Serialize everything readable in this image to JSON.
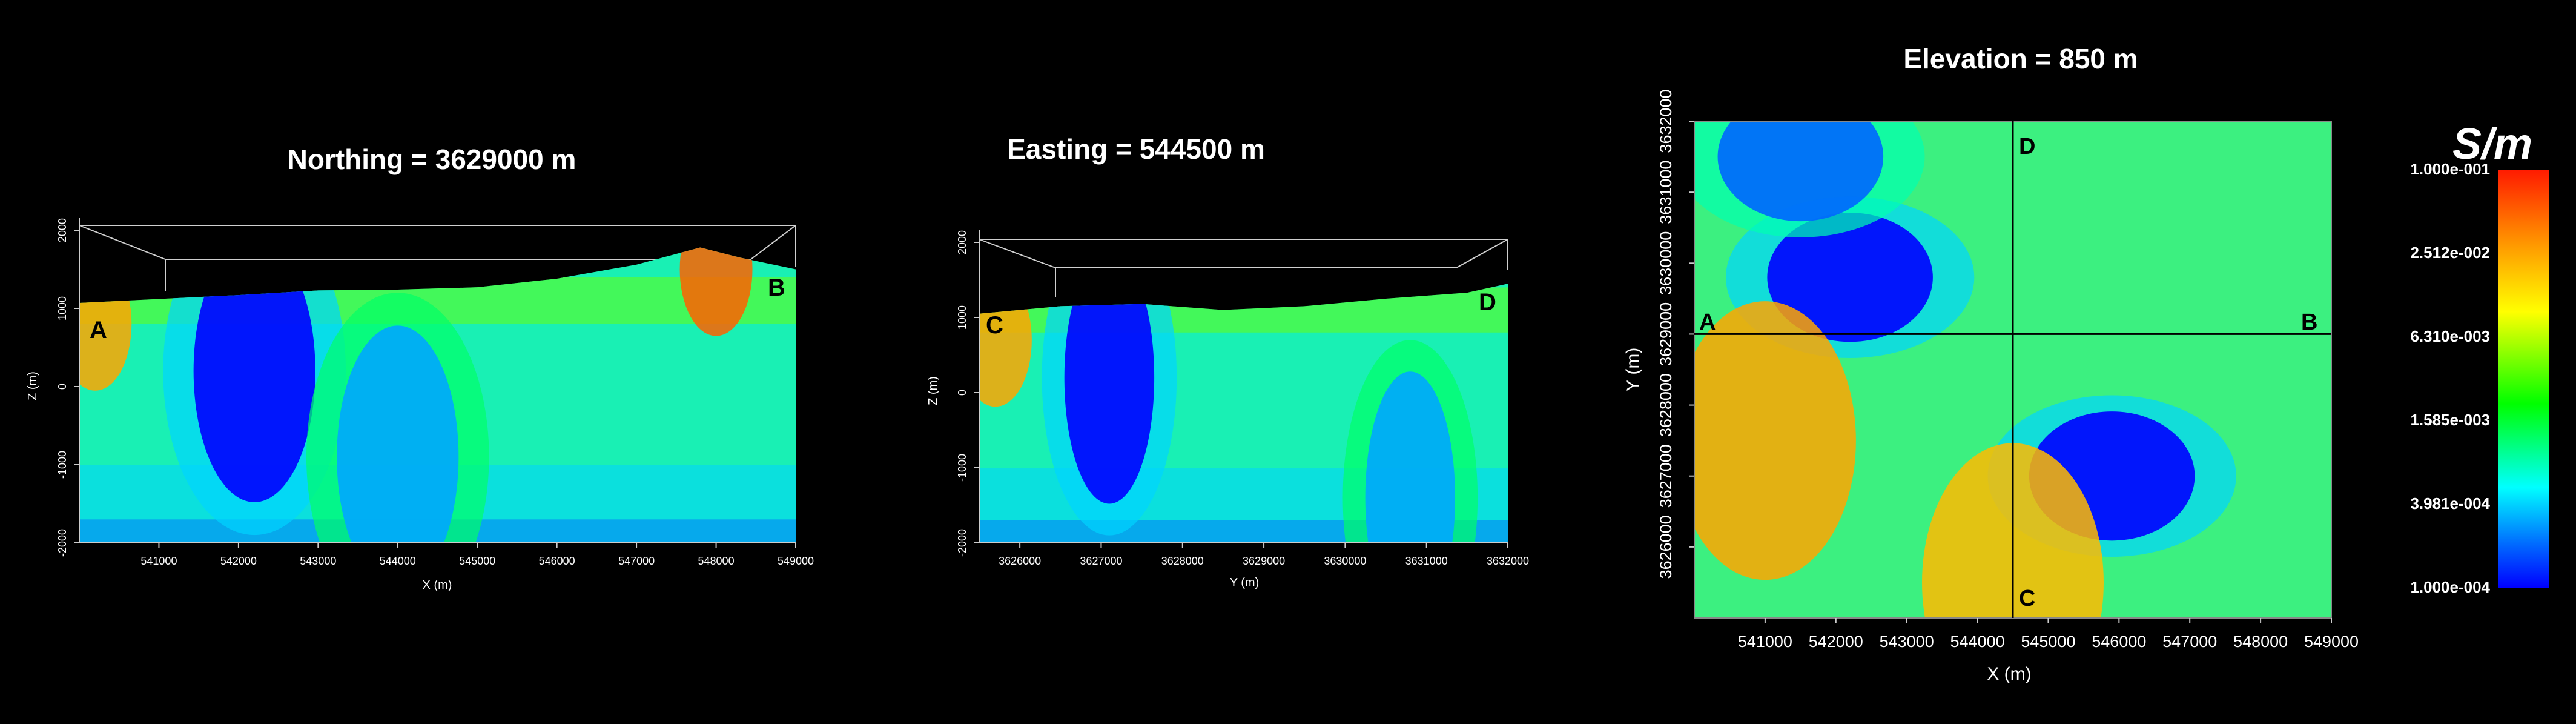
{
  "chart_data": [
    {
      "type": "heatmap",
      "title": "Northing = 3629000 m",
      "xlabel": "X (m)",
      "ylabel": "Z (m)",
      "x_ticks": [
        541000,
        542000,
        543000,
        544000,
        545000,
        546000,
        547000,
        548000,
        549000
      ],
      "y_ticks": [
        2000,
        1000,
        0,
        -1000,
        -2000
      ],
      "xlim": [
        540000,
        549000
      ],
      "ylim": [
        -2000,
        2000
      ],
      "section_labels": [
        "A",
        "B"
      ],
      "surface_elevation": [
        [
          540000,
          1070
        ],
        [
          541000,
          1120
        ],
        [
          542000,
          1170
        ],
        [
          543000,
          1230
        ],
        [
          544000,
          1240
        ],
        [
          545000,
          1270
        ],
        [
          546000,
          1380
        ],
        [
          547000,
          1560
        ],
        [
          547800,
          1780
        ],
        [
          548300,
          1650
        ],
        [
          549000,
          1500
        ]
      ],
      "conductive_bodies": [
        {
          "x": 542200,
          "z": 200,
          "value": 0.0001
        },
        {
          "x": 544000,
          "z": -900,
          "value": 0.0003
        }
      ],
      "near_surface_highs": [
        {
          "x": 540200,
          "z": 800,
          "value": 0.025
        },
        {
          "x": 548000,
          "z": 1500,
          "value": 0.05
        }
      ]
    },
    {
      "type": "heatmap",
      "title": "Easting = 544500 m",
      "xlabel": "Y (m)",
      "ylabel": "Z (m)",
      "x_ticks": [
        3626000,
        3627000,
        3628000,
        3629000,
        3630000,
        3631000,
        3632000
      ],
      "y_ticks": [
        2000,
        1000,
        0,
        -1000,
        -2000
      ],
      "xlim": [
        3625500,
        3632000
      ],
      "ylim": [
        -2000,
        2000
      ],
      "section_labels": [
        "C",
        "D"
      ],
      "surface_elevation": [
        [
          3625500,
          1050
        ],
        [
          3626500,
          1150
        ],
        [
          3627500,
          1180
        ],
        [
          3628500,
          1100
        ],
        [
          3629500,
          1150
        ],
        [
          3630500,
          1250
        ],
        [
          3631500,
          1330
        ],
        [
          3632000,
          1450
        ]
      ],
      "conductive_bodies": [
        {
          "x": 3627100,
          "z": 200,
          "value": 0.0001
        },
        {
          "x": 3630800,
          "z": -1400,
          "value": 0.0003
        }
      ],
      "near_surface_highs": [
        {
          "x": 3625700,
          "z": 700,
          "value": 0.025
        }
      ]
    },
    {
      "type": "heatmap",
      "title": "Elevation = 850 m",
      "xlabel": "X (m)",
      "ylabel": "Y (m)",
      "x_ticks": [
        541000,
        542000,
        543000,
        544000,
        545000,
        546000,
        547000,
        548000,
        549000
      ],
      "y_ticks": [
        3632000,
        3631000,
        3630000,
        3629000,
        3628000,
        3627000,
        3626000
      ],
      "xlim": [
        540000,
        549000
      ],
      "ylim": [
        3625000,
        3632000
      ],
      "section_labels": [
        "A",
        "B",
        "C",
        "D"
      ],
      "profile_lines": [
        {
          "orientation": "horizontal",
          "value": 3629000,
          "from": "A",
          "to": "B"
        },
        {
          "orientation": "vertical",
          "value": 544500,
          "from": "C",
          "to": "D"
        }
      ],
      "conductive_bodies": [
        {
          "x": 542200,
          "y": 3629800,
          "value": 0.0001
        },
        {
          "x": 541500,
          "y": 3631500,
          "value": 0.0002
        },
        {
          "x": 545900,
          "y": 3627000,
          "value": 0.0001
        }
      ],
      "resistive_zones": [
        {
          "x": 541000,
          "y": 3627500,
          "value": 0.025
        },
        {
          "x": 544500,
          "y": 3625500,
          "value": 0.02
        }
      ]
    }
  ],
  "colorbar": {
    "title": "S/m",
    "scale": "log",
    "ticks": [
      "1.000e-001",
      "2.512e-002",
      "6.310e-003",
      "1.585e-003",
      "3.981e-004",
      "1.000e-004"
    ],
    "range": [
      0.0001,
      0.1
    ],
    "colors": [
      "#ff1a00",
      "#ff9900",
      "#ffff00",
      "#00ff00",
      "#00ffff",
      "#0066ff",
      "#0000ff"
    ]
  }
}
